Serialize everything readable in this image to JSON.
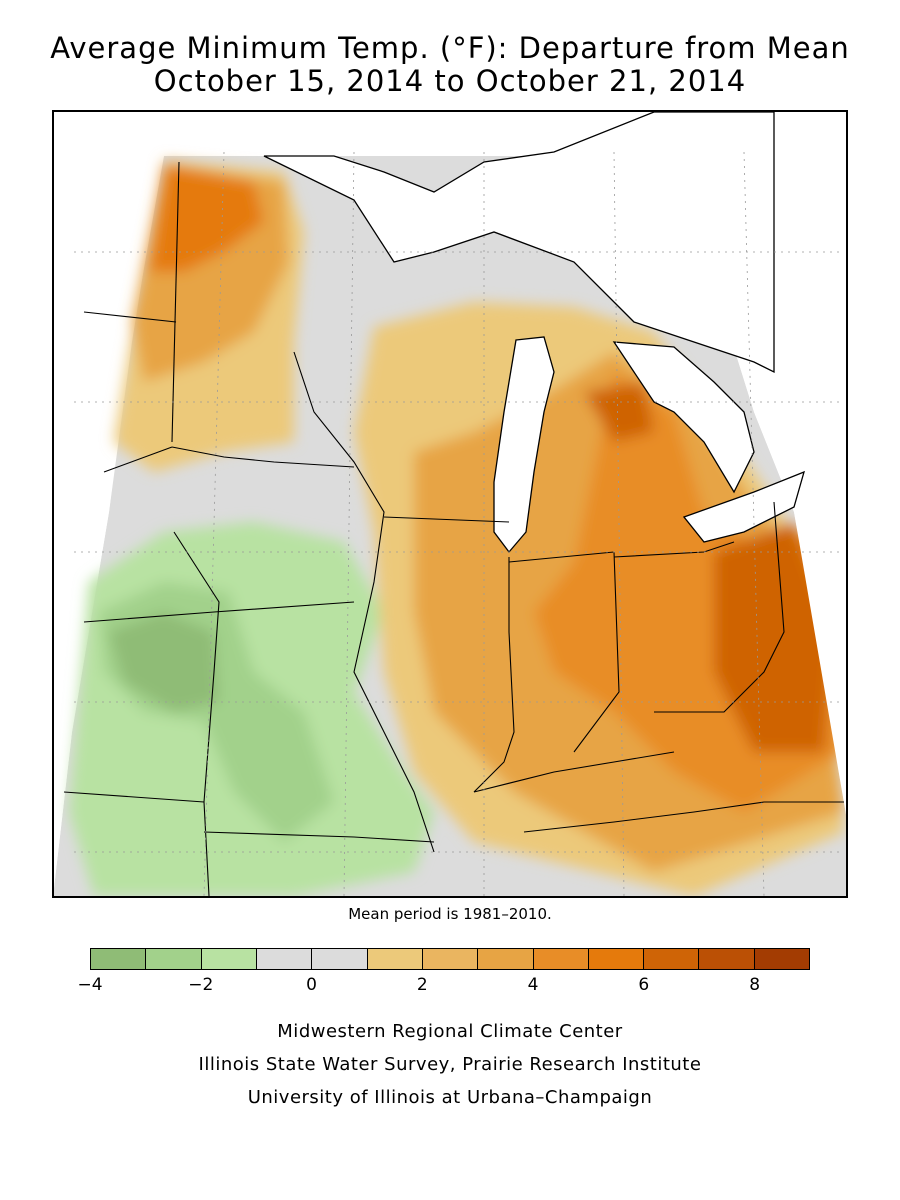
{
  "title": {
    "line1": "Average Minimum Temp. (°F): Departure from Mean",
    "line2": "October 15, 2014 to October 21, 2014"
  },
  "map": {
    "region": "Midwestern United States",
    "mean_note": "Mean period is 1981–2010.",
    "lake_color": "#ffffff",
    "boundary_color": "#000000"
  },
  "legend": {
    "tick_labels": [
      "−4",
      "−2",
      "0",
      "2",
      "4",
      "6",
      "8"
    ],
    "tick_values": [
      -4,
      -2,
      0,
      2,
      4,
      6,
      8
    ],
    "range": [
      -4,
      9
    ],
    "bins": [
      {
        "from": -4,
        "to": -3,
        "color": "#8fbc76"
      },
      {
        "from": -3,
        "to": -2,
        "color": "#a2d18b"
      },
      {
        "from": -2,
        "to": -1,
        "color": "#b8e2a2"
      },
      {
        "from": -1,
        "to": 0,
        "color": "#dcdcdc"
      },
      {
        "from": 0,
        "to": 1,
        "color": "#dcdcdc"
      },
      {
        "from": 1,
        "to": 2,
        "color": "#ecc97a"
      },
      {
        "from": 2,
        "to": 3,
        "color": "#eab560"
      },
      {
        "from": 3,
        "to": 4,
        "color": "#e7a444"
      },
      {
        "from": 4,
        "to": 5,
        "color": "#e88d27"
      },
      {
        "from": 5,
        "to": 6,
        "color": "#e57a0c"
      },
      {
        "from": 6,
        "to": 7,
        "color": "#cf6406"
      },
      {
        "from": 7,
        "to": 8,
        "color": "#bb5005"
      },
      {
        "from": 8,
        "to": 9,
        "color": "#a33c02"
      }
    ]
  },
  "credits": [
    "Midwestern Regional Climate Center",
    "Illinois State Water Survey, Prairie Research Institute",
    "University of Illinois at Urbana–Champaign"
  ]
}
